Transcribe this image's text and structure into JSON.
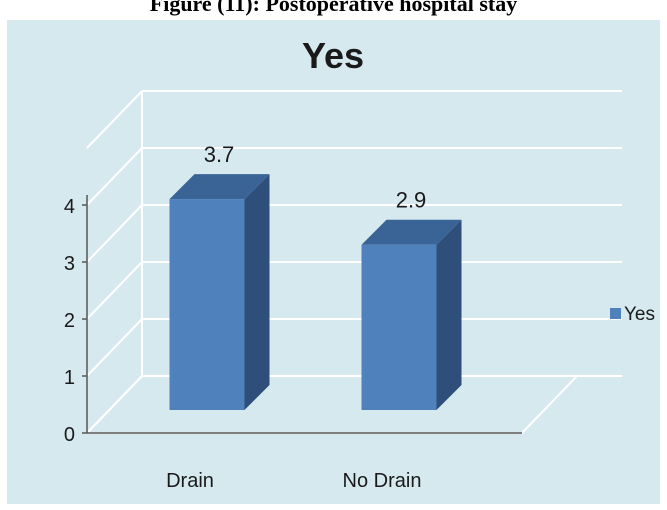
{
  "figure_caption": "Figure (11): Postoperative hospital stay",
  "chart_data": {
    "type": "bar",
    "title": "Yes",
    "categories": [
      "Drain",
      "No Drain"
    ],
    "series": [
      {
        "name": "Yes",
        "values": [
          3.7,
          2.9
        ]
      }
    ],
    "data_labels": [
      "3.7",
      "2.9"
    ],
    "y_ticks": [
      "0",
      "1",
      "2",
      "3",
      "4"
    ],
    "ylim": [
      0,
      5
    ],
    "xlabel": "",
    "ylabel": "",
    "grid": true,
    "legend_position": "right",
    "style": "3d-column",
    "colors": {
      "background": "#d6e9ef",
      "bar_front": "#4f81bd",
      "bar_side": "#2e4f7a",
      "bar_top": "#3b6496",
      "grid": "#ffffff"
    }
  }
}
